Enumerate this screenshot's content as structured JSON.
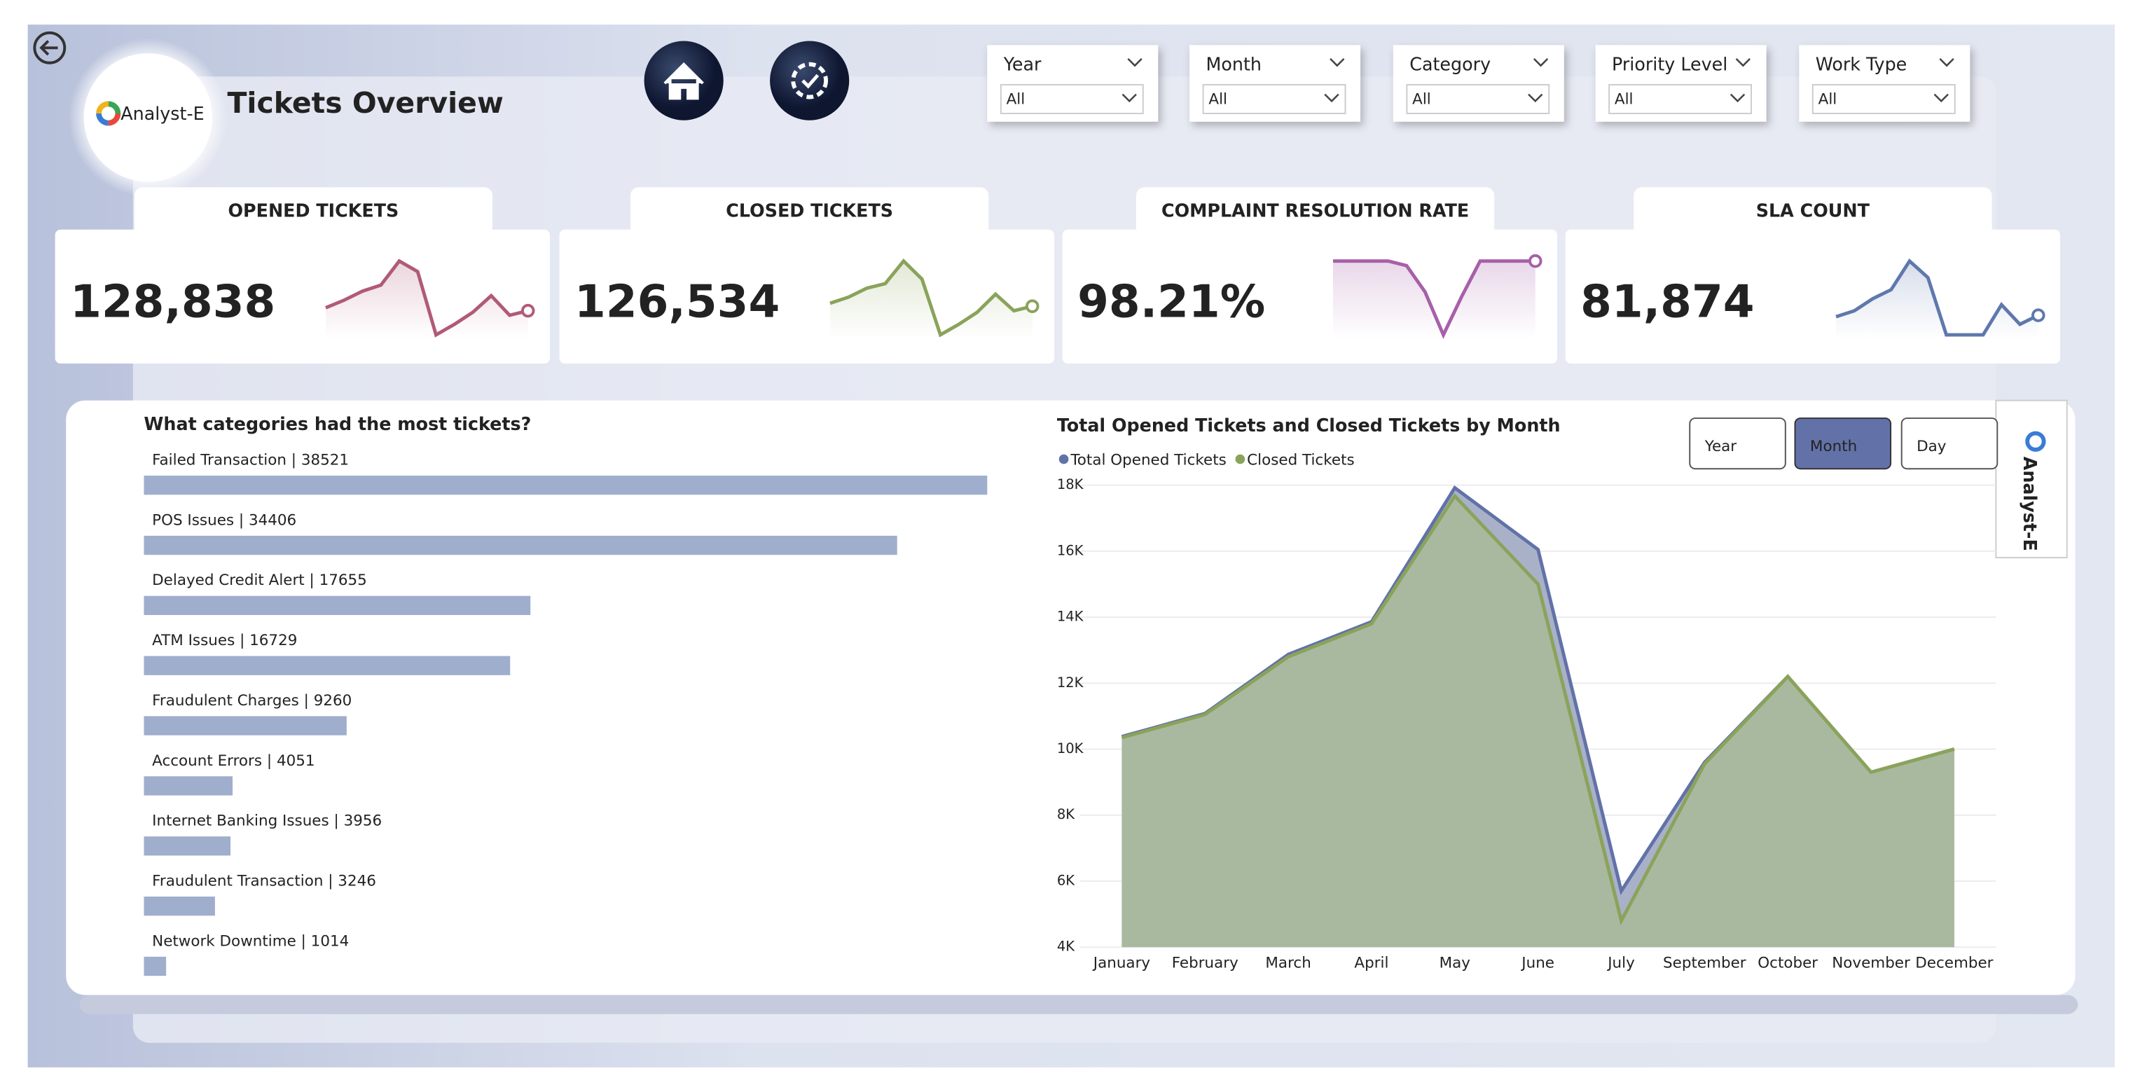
{
  "header": {
    "title": "Tickets Overview",
    "logo": "Analyst-E",
    "side_tab": "Analyst-E"
  },
  "filters": [
    {
      "label": "Year",
      "value": "All"
    },
    {
      "label": "Month",
      "value": "All"
    },
    {
      "label": "Category",
      "value": "All"
    },
    {
      "label": "Priority Level",
      "value": "All"
    },
    {
      "label": "Work Type",
      "value": "All"
    }
  ],
  "kpis": [
    {
      "title": "OPENED TICKETS",
      "value": "128,838",
      "color": "#b05a78",
      "spark": [
        28,
        33,
        39,
        43,
        59,
        52,
        10,
        17,
        25,
        36,
        23,
        26
      ]
    },
    {
      "title": "CLOSED TICKETS",
      "value": "126,534",
      "color": "#8aa35a",
      "spark": [
        31,
        35,
        41,
        44,
        59,
        47,
        10,
        17,
        25,
        37,
        26,
        29
      ]
    },
    {
      "title": "COMPLAINT RESOLUTION RATE",
      "value": "98.21%",
      "color": "#a660a8",
      "spark": [
        58,
        58,
        58,
        58,
        55,
        38,
        10,
        35,
        58,
        58,
        58,
        58
      ]
    },
    {
      "title": "SLA COUNT",
      "value": "81,874",
      "color": "#5f78ad",
      "spark": [
        22,
        26,
        34,
        40,
        59,
        48,
        10,
        10,
        10,
        30,
        17,
        23
      ]
    }
  ],
  "period_buttons": {
    "options": [
      "Year",
      "Month",
      "Day"
    ],
    "selected": "Month"
  },
  "chart_data": [
    {
      "type": "bar",
      "orientation": "horizontal",
      "title": "What categories had the most tickets?",
      "categories": [
        "Failed Transaction",
        "POS Issues",
        "Delayed Credit Alert",
        "ATM Issues",
        "Fraudulent Charges",
        "Account Errors",
        "Internet Banking Issues",
        "Fraudulent Transaction",
        "Network Downtime"
      ],
      "values": [
        38521,
        34406,
        17655,
        16729,
        9260,
        4051,
        3956,
        3246,
        1014
      ],
      "separator": " | ",
      "color": "#a0aecd"
    },
    {
      "type": "area",
      "title": "Total Opened Tickets and Closed Tickets by Month",
      "categories": [
        "January",
        "February",
        "March",
        "April",
        "May",
        "June",
        "July",
        "September",
        "October",
        "November",
        "December"
      ],
      "series": [
        {
          "name": "Total Opened Tickets",
          "color": "#6272a8",
          "fill": "#a9b1c9",
          "values": [
            10380,
            11080,
            12870,
            13860,
            17920,
            16050,
            5700,
            9600,
            12200,
            9300,
            10000
          ]
        },
        {
          "name": "Closed Tickets",
          "color": "#8aa35a",
          "fill": "#a9b99f",
          "values": [
            10350,
            11050,
            12800,
            13800,
            17670,
            15000,
            4800,
            9550,
            12200,
            9300,
            10000
          ]
        }
      ],
      "ylim": [
        4000,
        18000
      ],
      "yticks": [
        {
          "value": 4000,
          "label": "4K"
        },
        {
          "value": 6000,
          "label": "6K"
        },
        {
          "value": 8000,
          "label": "8K"
        },
        {
          "value": 10000,
          "label": "10K"
        },
        {
          "value": 12000,
          "label": "12K"
        },
        {
          "value": 14000,
          "label": "14K"
        },
        {
          "value": 16000,
          "label": "16K"
        },
        {
          "value": 18000,
          "label": "18K"
        }
      ],
      "grid": true,
      "legend": "top-left"
    }
  ]
}
